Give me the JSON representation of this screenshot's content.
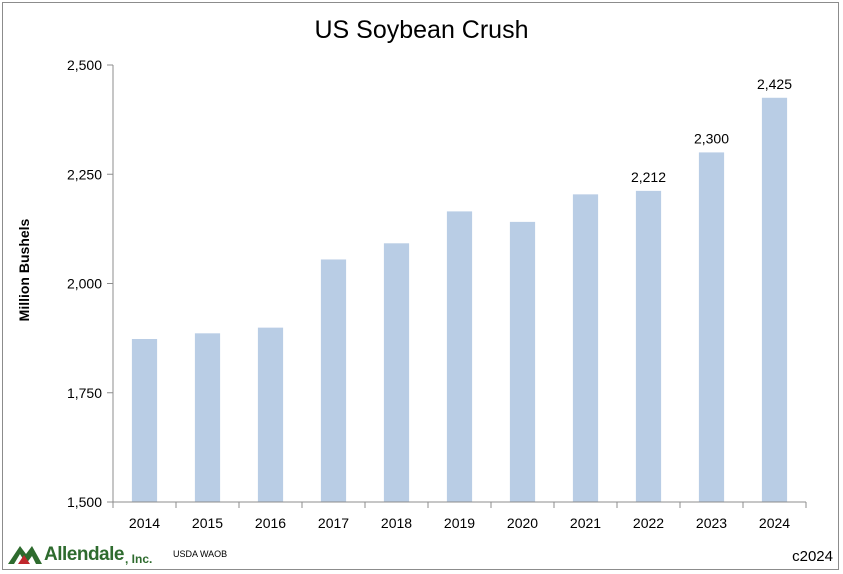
{
  "chart_data": {
    "type": "bar",
    "title": "US Soybean Crush",
    "xlabel": "",
    "ylabel": "Million Bushels",
    "categories": [
      "2014",
      "2015",
      "2016",
      "2017",
      "2018",
      "2019",
      "2020",
      "2021",
      "2022",
      "2023",
      "2024"
    ],
    "values": [
      1873,
      1886,
      1899,
      2055,
      2092,
      2165,
      2141,
      2204,
      2212,
      2300,
      2425
    ],
    "data_labels": [
      null,
      null,
      null,
      null,
      null,
      null,
      null,
      null,
      "2,212",
      "2,300",
      "2,425"
    ],
    "ylim": [
      1500,
      2500
    ],
    "yticks": [
      1500,
      1750,
      2000,
      2250,
      2500
    ],
    "ytick_labels": [
      "1,500",
      "1,750",
      "2,000",
      "2,250",
      "2,500"
    ],
    "bar_color": "#b9cde5",
    "grid": false
  },
  "footer": {
    "logo_name": "Allendale",
    "logo_suffix": ", Inc.",
    "source": "USDA WAOB",
    "copyright": "c2024"
  },
  "colors": {
    "logo_green": "#2e6b2e",
    "logo_red": "#c0282d"
  }
}
